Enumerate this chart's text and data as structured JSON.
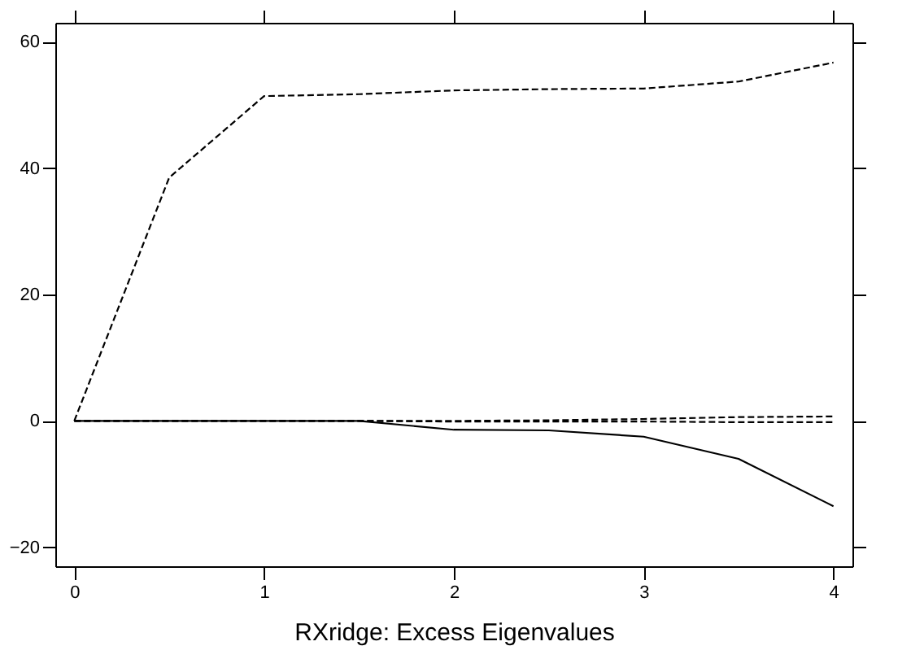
{
  "chart_data": {
    "type": "line",
    "xlabel": "RXridge: Excess Eigenvalues",
    "x": [
      0,
      0.5,
      1,
      1.5,
      2,
      2.5,
      3,
      3.5,
      4
    ],
    "xlim": [
      -0.1,
      4.1
    ],
    "xticks": [
      0,
      1,
      2,
      3,
      4
    ],
    "ylim": [
      -23,
      63
    ],
    "yticks": [
      -20,
      0,
      20,
      40,
      60
    ],
    "grid": false,
    "series": [
      {
        "color": "#000000",
        "line_style": "dashed",
        "values": [
          0,
          38.5,
          51.4,
          51.7,
          52.3,
          52.5,
          52.6,
          53.7,
          56.7
        ]
      },
      {
        "color": "#000000",
        "line_style": "solid",
        "values": [
          0,
          0,
          0,
          0,
          -1.4,
          -1.5,
          -2.5,
          -6.0,
          -13.5
        ]
      },
      {
        "color": "#000000",
        "line_style": "dashed",
        "values": [
          0,
          0,
          0,
          0,
          0,
          0.1,
          0.3,
          0.6,
          0.7
        ]
      },
      {
        "color": "#000000",
        "line_style": "dashed",
        "values": [
          0,
          0,
          0,
          0,
          -0.1,
          -0.1,
          -0.1,
          -0.2,
          -0.2
        ]
      }
    ]
  }
}
